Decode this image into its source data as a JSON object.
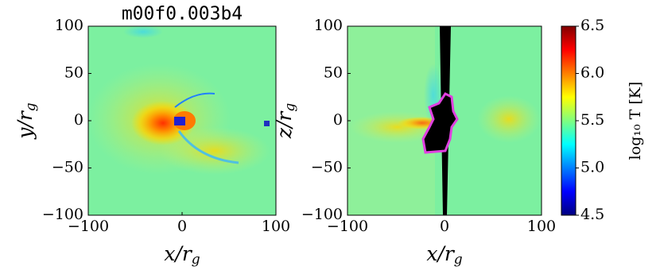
{
  "chart_data": [
    {
      "type": "heatmap",
      "title": "m00f0.003b4",
      "x_label": "x/r_g",
      "y_label": "y/r_g",
      "xlim": [
        -100,
        100
      ],
      "ylim": [
        -100,
        100
      ],
      "xticks": [
        {
          "value": -100,
          "label": "−100"
        },
        0,
        100
      ],
      "yticks": [
        {
          "value": -100,
          "label": "−100"
        },
        {
          "value": -50,
          "label": "−50"
        },
        0,
        50,
        100
      ]
    },
    {
      "type": "heatmap",
      "x_label": "x/r_g",
      "y_label": "z/r_g",
      "xlim": [
        -100,
        100
      ],
      "ylim": [
        -100,
        100
      ],
      "xticks": [
        {
          "value": -100,
          "label": "−100"
        },
        0,
        100
      ],
      "yticks": [
        {
          "value": -100,
          "label": "−100"
        },
        {
          "value": -50,
          "label": "−50"
        },
        0,
        50,
        100
      ],
      "colorbar": {
        "label": "log₁₀ T [K]",
        "lim": [
          4.5,
          6.5
        ],
        "colormap": "jet",
        "ticks": [
          4.5,
          {
            "value": 5.0,
            "label": "5.0"
          },
          5.5,
          {
            "value": 6.0,
            "label": "6.0"
          },
          6.5
        ]
      }
    }
  ]
}
